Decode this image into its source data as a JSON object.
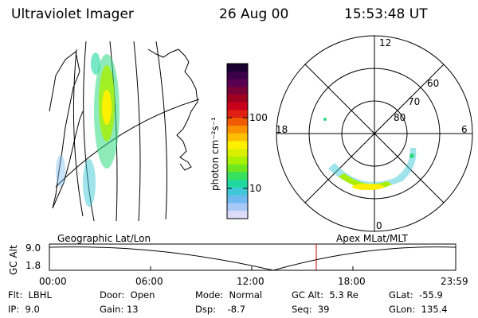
{
  "header": {
    "instrument": "Ultraviolet Imager",
    "date": "26 Aug 00",
    "time": "15:53:48 UT"
  },
  "colorbar": {
    "label": "photon cm⁻²s⁻¹",
    "tick_labels": [
      "100",
      "10"
    ],
    "colors": [
      "#1a0030",
      "#3a0048",
      "#5a0050",
      "#7a0038",
      "#a00020",
      "#c8001a",
      "#e02010",
      "#f05a00",
      "#f89000",
      "#fcbf00",
      "#fff000",
      "#d8f000",
      "#a8f000",
      "#70e820",
      "#38e060",
      "#20d8a0",
      "#40c8d8",
      "#70b8f0",
      "#a8c8f8",
      "#dcdcf8"
    ]
  },
  "polar": {
    "labels": {
      "top": "12",
      "bottom": "0",
      "left": "18",
      "right": "6"
    },
    "lat_labels": [
      "60",
      "70",
      "80"
    ]
  },
  "altplot": {
    "ylabel": "GC Alt",
    "yticks": [
      "9.0",
      "1.8"
    ],
    "left_title": "Geographic Lat/Lon",
    "right_title": "Apex MLat/MLT",
    "xticks": [
      "00:00",
      "06:00",
      "12:00",
      "18:00",
      "23:59"
    ],
    "marker_color": "#c00000"
  },
  "footer": {
    "flt": "Flt:  LBHL",
    "ip": "IP:  9.0",
    "door": "Door:  Open",
    "gain": "Gain: 13",
    "mode": "Mode:  Normal",
    "dsp": "Dsp:    -8.7",
    "gcalt": "GC Alt:  5.3 Re",
    "seq": "Seq:  39",
    "glat": "GLat:  -55.9",
    "glon": "GLon:  135.4"
  }
}
